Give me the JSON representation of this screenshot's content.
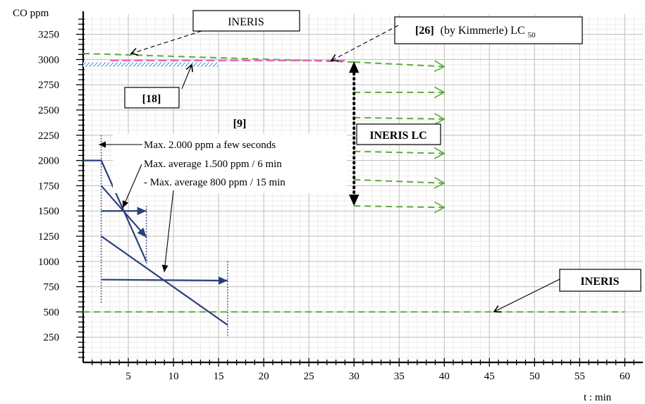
{
  "chart_data": {
    "type": "line",
    "xlabel": "t : min",
    "ylabel": "CO ppm",
    "xlim": [
      0,
      62
    ],
    "ylim": [
      0,
      3450
    ],
    "xticks": [
      5,
      10,
      15,
      20,
      25,
      30,
      35,
      40,
      45,
      50,
      55,
      60
    ],
    "yticks": [
      250,
      500,
      750,
      1000,
      1250,
      1500,
      1750,
      2000,
      2250,
      2500,
      2750,
      3000,
      3250
    ],
    "grid": true,
    "colors": {
      "navy": "#2a3f7a",
      "green": "#5aad3a",
      "pink": "#e060b8",
      "blue": "#3b8fd6",
      "black": "#000000"
    },
    "series": [
      {
        "style": "green-dashed",
        "points": [
          [
            0,
            3060
          ],
          [
            30,
            2975
          ]
        ]
      },
      {
        "style": "pink-dashed",
        "points": [
          [
            3,
            2990
          ],
          [
            29,
            2990
          ]
        ]
      },
      {
        "style": "blue-hatched",
        "points": [
          [
            0,
            2950
          ],
          [
            15,
            2950
          ]
        ]
      },
      {
        "style": "green-dashed-arrow",
        "points": [
          [
            30,
            2975
          ],
          [
            40,
            2930
          ]
        ]
      },
      {
        "style": "green-dashed-arrow",
        "points": [
          [
            30,
            2675
          ],
          [
            40,
            2675
          ]
        ]
      },
      {
        "style": "green-dashed-arrow",
        "points": [
          [
            30,
            2425
          ],
          [
            40,
            2410
          ]
        ]
      },
      {
        "style": "green-dashed-arrow",
        "points": [
          [
            30,
            2090
          ],
          [
            40,
            2070
          ]
        ]
      },
      {
        "style": "green-dashed-arrow",
        "points": [
          [
            30,
            1810
          ],
          [
            40,
            1775
          ]
        ]
      },
      {
        "style": "green-dashed-arrow",
        "points": [
          [
            30,
            1550
          ],
          [
            40,
            1535
          ]
        ]
      },
      {
        "style": "green-dashed",
        "points": [
          [
            0,
            500
          ],
          [
            60,
            500
          ]
        ]
      },
      {
        "style": "navy",
        "points": [
          [
            0,
            2000
          ],
          [
            2,
            2000
          ],
          [
            7,
            1000
          ]
        ]
      },
      {
        "style": "navy-arrow",
        "points": [
          [
            2,
            1750
          ],
          [
            7,
            1240
          ]
        ]
      },
      {
        "style": "navy-arrow",
        "points": [
          [
            2,
            1500
          ],
          [
            7,
            1500
          ]
        ]
      },
      {
        "style": "navy",
        "points": [
          [
            2,
            1250
          ],
          [
            16,
            370
          ]
        ]
      },
      {
        "style": "navy-arrow",
        "points": [
          [
            2,
            820
          ],
          [
            16,
            810
          ]
        ]
      }
    ],
    "verticals": [
      {
        "x": 2,
        "from": 590,
        "to": 2250
      },
      {
        "x": 7,
        "from": 960,
        "to": 1550
      },
      {
        "x": 16,
        "from": 250,
        "to": 1000
      }
    ],
    "range_arrow": {
      "x": 30,
      "from": 1550,
      "to": 2980
    },
    "annotations": {
      "ineris_top": "INERIS",
      "ref26": "[26]",
      "ref26_rest": "(by Kimmerle) LC",
      "ref26_sub": "50",
      "ref18": "[18]",
      "ref9": "[9]",
      "ineris_lc": "INERIS LC",
      "ineris_bottom": "INERIS",
      "note1": "Max. 2.000 ppm a few seconds",
      "note2": "Max. average 1.500 ppm / 6 min",
      "note3": "- Max. average 800 ppm / 15 min"
    }
  }
}
